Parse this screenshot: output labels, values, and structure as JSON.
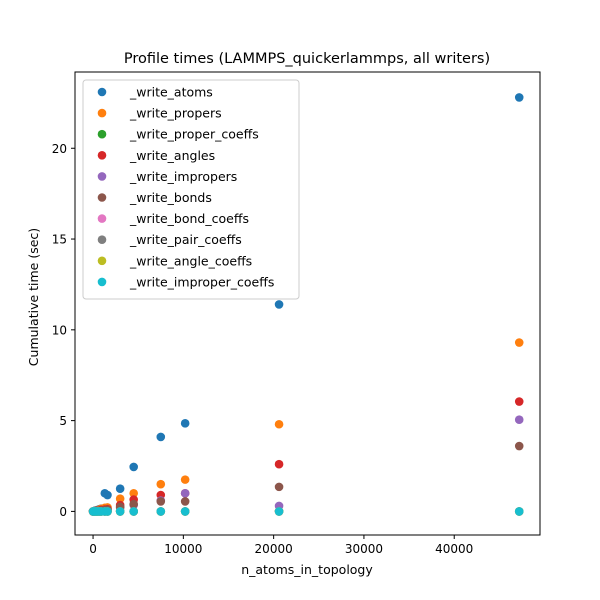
{
  "chart_data": {
    "type": "scatter",
    "title": "Profile times (LAMMPS_quickerlammps, all writers)",
    "xlabel": "n_atoms_in_topology",
    "ylabel": "Cumulative time (sec)",
    "xlim": [
      -2000,
      49500
    ],
    "ylim": [
      -1.3,
      24.2
    ],
    "xticks": [
      0,
      10000,
      20000,
      30000,
      40000
    ],
    "yticks": [
      0,
      5,
      10,
      15,
      20
    ],
    "legend": "top-left",
    "grid": false,
    "series": [
      {
        "name": "_write_atoms",
        "color": "#1f77b4",
        "points": [
          [
            0,
            0
          ],
          [
            100,
            0.02
          ],
          [
            200,
            0.04
          ],
          [
            350,
            0.06
          ],
          [
            500,
            0.08
          ],
          [
            700,
            0.12
          ],
          [
            900,
            0.15
          ],
          [
            1300,
            1.0
          ],
          [
            1600,
            0.9
          ],
          [
            3000,
            1.25
          ],
          [
            4500,
            2.45
          ],
          [
            7500,
            4.1
          ],
          [
            10200,
            4.85
          ],
          [
            20600,
            11.4
          ],
          [
            47200,
            22.8
          ]
        ]
      },
      {
        "name": "_write_propers",
        "color": "#ff7f0e",
        "points": [
          [
            0,
            0
          ],
          [
            100,
            0.01
          ],
          [
            200,
            0.02
          ],
          [
            350,
            0.03
          ],
          [
            500,
            0.05
          ],
          [
            700,
            0.1
          ],
          [
            900,
            0.14
          ],
          [
            1300,
            0.2
          ],
          [
            1600,
            0.22
          ],
          [
            3000,
            0.7
          ],
          [
            4500,
            1.0
          ],
          [
            7500,
            1.5
          ],
          [
            10200,
            1.75
          ],
          [
            20600,
            4.8
          ],
          [
            47200,
            9.3
          ]
        ]
      },
      {
        "name": "_write_proper_coeffs",
        "color": "#2ca02c",
        "points": [
          [
            0,
            0
          ],
          [
            100,
            0
          ],
          [
            200,
            0
          ],
          [
            350,
            0
          ],
          [
            500,
            0
          ],
          [
            700,
            0
          ],
          [
            900,
            0
          ],
          [
            1300,
            0
          ],
          [
            1600,
            0
          ],
          [
            3000,
            0
          ],
          [
            4500,
            0
          ],
          [
            7500,
            0
          ],
          [
            10200,
            0
          ],
          [
            20600,
            0
          ],
          [
            47200,
            0
          ]
        ]
      },
      {
        "name": "_write_angles",
        "color": "#d62728",
        "points": [
          [
            0,
            0
          ],
          [
            100,
            0.01
          ],
          [
            200,
            0.01
          ],
          [
            350,
            0.02
          ],
          [
            500,
            0.03
          ],
          [
            700,
            0.05
          ],
          [
            900,
            0.08
          ],
          [
            1300,
            0.1
          ],
          [
            1600,
            0.12
          ],
          [
            3000,
            0.35
          ],
          [
            4500,
            0.65
          ],
          [
            7500,
            0.9
          ],
          [
            10200,
            1.0
          ],
          [
            20600,
            2.6
          ],
          [
            47200,
            6.05
          ]
        ]
      },
      {
        "name": "_write_impropers",
        "color": "#9467bd",
        "points": [
          [
            0,
            0
          ],
          [
            100,
            0
          ],
          [
            200,
            0.01
          ],
          [
            350,
            0.01
          ],
          [
            500,
            0.02
          ],
          [
            700,
            0.03
          ],
          [
            900,
            0.04
          ],
          [
            1300,
            0.06
          ],
          [
            1600,
            0.08
          ],
          [
            3000,
            0.2
          ],
          [
            4500,
            0.35
          ],
          [
            7500,
            0.6
          ],
          [
            10200,
            1.0
          ],
          [
            20600,
            0.3
          ],
          [
            47200,
            5.05
          ]
        ]
      },
      {
        "name": "_write_bonds",
        "color": "#8c564b",
        "points": [
          [
            0,
            0
          ],
          [
            100,
            0
          ],
          [
            200,
            0.01
          ],
          [
            350,
            0.01
          ],
          [
            500,
            0.02
          ],
          [
            700,
            0.03
          ],
          [
            900,
            0.04
          ],
          [
            1300,
            0.07
          ],
          [
            1600,
            0.09
          ],
          [
            3000,
            0.25
          ],
          [
            4500,
            0.4
          ],
          [
            7500,
            0.55
          ],
          [
            10200,
            0.55
          ],
          [
            20600,
            1.35
          ],
          [
            47200,
            3.6
          ]
        ]
      },
      {
        "name": "_write_bond_coeffs",
        "color": "#e377c2",
        "points": [
          [
            0,
            0
          ],
          [
            100,
            0
          ],
          [
            200,
            0
          ],
          [
            350,
            0
          ],
          [
            500,
            0
          ],
          [
            700,
            0
          ],
          [
            900,
            0
          ],
          [
            1300,
            0
          ],
          [
            1600,
            0
          ],
          [
            3000,
            0
          ],
          [
            4500,
            0
          ],
          [
            7500,
            0
          ],
          [
            10200,
            0
          ],
          [
            20600,
            0
          ],
          [
            47200,
            0
          ]
        ]
      },
      {
        "name": "_write_pair_coeffs",
        "color": "#7f7f7f",
        "points": [
          [
            0,
            0
          ],
          [
            100,
            0
          ],
          [
            200,
            0
          ],
          [
            350,
            0
          ],
          [
            500,
            0
          ],
          [
            700,
            0
          ],
          [
            900,
            0
          ],
          [
            1300,
            0
          ],
          [
            1600,
            0
          ],
          [
            3000,
            0
          ],
          [
            4500,
            0
          ],
          [
            7500,
            0
          ],
          [
            10200,
            0
          ],
          [
            20600,
            0
          ],
          [
            47200,
            0
          ]
        ]
      },
      {
        "name": "_write_angle_coeffs",
        "color": "#bcbd22",
        "points": [
          [
            0,
            0
          ],
          [
            100,
            0
          ],
          [
            200,
            0
          ],
          [
            350,
            0
          ],
          [
            500,
            0
          ],
          [
            700,
            0
          ],
          [
            900,
            0
          ],
          [
            1300,
            0
          ],
          [
            1600,
            0
          ],
          [
            3000,
            0
          ],
          [
            4500,
            0
          ],
          [
            7500,
            0
          ],
          [
            10200,
            0
          ],
          [
            20600,
            0
          ],
          [
            47200,
            0
          ]
        ]
      },
      {
        "name": "_write_improper_coeffs",
        "color": "#17becf",
        "points": [
          [
            0,
            0
          ],
          [
            100,
            0
          ],
          [
            200,
            0
          ],
          [
            350,
            0
          ],
          [
            500,
            0
          ],
          [
            700,
            0
          ],
          [
            900,
            0
          ],
          [
            1300,
            0
          ],
          [
            1600,
            0
          ],
          [
            3000,
            0
          ],
          [
            4500,
            0
          ],
          [
            7500,
            0
          ],
          [
            10200,
            0
          ],
          [
            20600,
            0
          ],
          [
            47200,
            0
          ]
        ]
      }
    ]
  }
}
